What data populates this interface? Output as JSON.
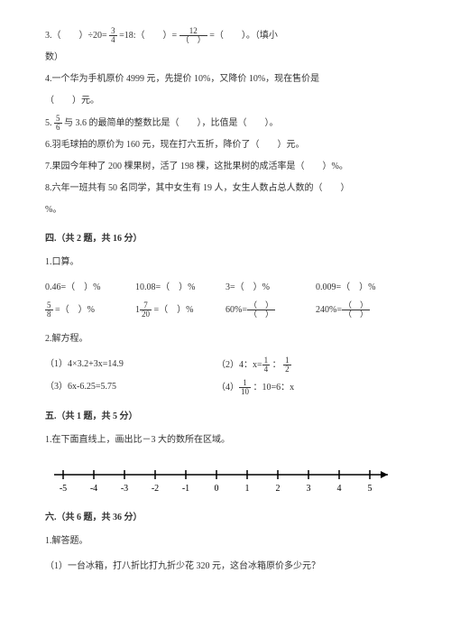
{
  "q3": {
    "prefix": "3.（　　）÷20= ",
    "f1n": "3",
    "f1d": "4",
    "mid1": " =18:（　　）= ",
    "f2n": "12",
    "f2d": "（　）",
    "mid2": " =（　　）。（填小",
    "cont": "数）"
  },
  "q4": {
    "l1": "4.一个华为手机原价 4999 元，先提价 10%，又降价 10%，现在售价是",
    "l2": "（　　）元。"
  },
  "q5": {
    "prefix": "5. ",
    "fn": "5",
    "fd": "6",
    "rest": " 与 3.6 的最简单的整数比是（　　），比值是（　　）。"
  },
  "q6": "6.羽毛球拍的原价为 160 元，现在打六五折，降价了（　　）元。",
  "q7": "7.果园今年种了 200 棵果树，活了 198 棵，这批果树的成活率是（　　）%。",
  "q8": {
    "l1": "8.六年一班共有 50 名同学，其中女生有 19 人，女生人数占总人数的（　　）",
    "l2": "%。"
  },
  "s4": {
    "title": "四.（共 2 题，共 16 分）",
    "q1": "1.口算。"
  },
  "calc": {
    "r1a": "0.46=（　）%",
    "r1b": "10.08=（　）%",
    "r1c": "3=（　）%",
    "r1d": "0.009=（　）%",
    "r2a_fn": "5",
    "r2a_fd": "8",
    "r2a_t": " =（　）%",
    "r2b_pre": "1",
    "r2b_fn": "7",
    "r2b_fd": "20",
    "r2b_t": " =（　）%",
    "r2c_pre": "60%=",
    "r2c_n": "（　）",
    "r2c_d": "（　）",
    "r2d_pre": "240%=",
    "r2d_n": "（　）",
    "r2d_d": "（　）"
  },
  "s4q2": "2.解方程。",
  "eq": {
    "e1": "（1）4×3.2+3x=14.9",
    "e2_pre": "（2）4：x=",
    "e2_f1n": "1",
    "e2_f1d": "4",
    "e2_mid": " ： ",
    "e2_f2n": "1",
    "e2_f2d": "2",
    "e3": "（3）6x-6.25=5.75",
    "e4_pre": "（4）",
    "e4_fn": "1",
    "e4_fd": "10",
    "e4_t": " ：10=6：x"
  },
  "s5": {
    "title": "五.（共 1 题，共 5 分）",
    "q1": "1.在下面直线上，画出比－3 大的数所在区域。"
  },
  "numline": {
    "ticks": [
      "-5",
      "-4",
      "-3",
      "-2",
      "-1",
      "0",
      "1",
      "2",
      "3",
      "4",
      "5"
    ]
  },
  "s6": {
    "title": "六.（共 6 题，共 36 分）",
    "q1": "1.解答题。",
    "sub1": "（1）一台冰箱，打八折比打九折少花 320 元，这台冰箱原价多少元？"
  }
}
